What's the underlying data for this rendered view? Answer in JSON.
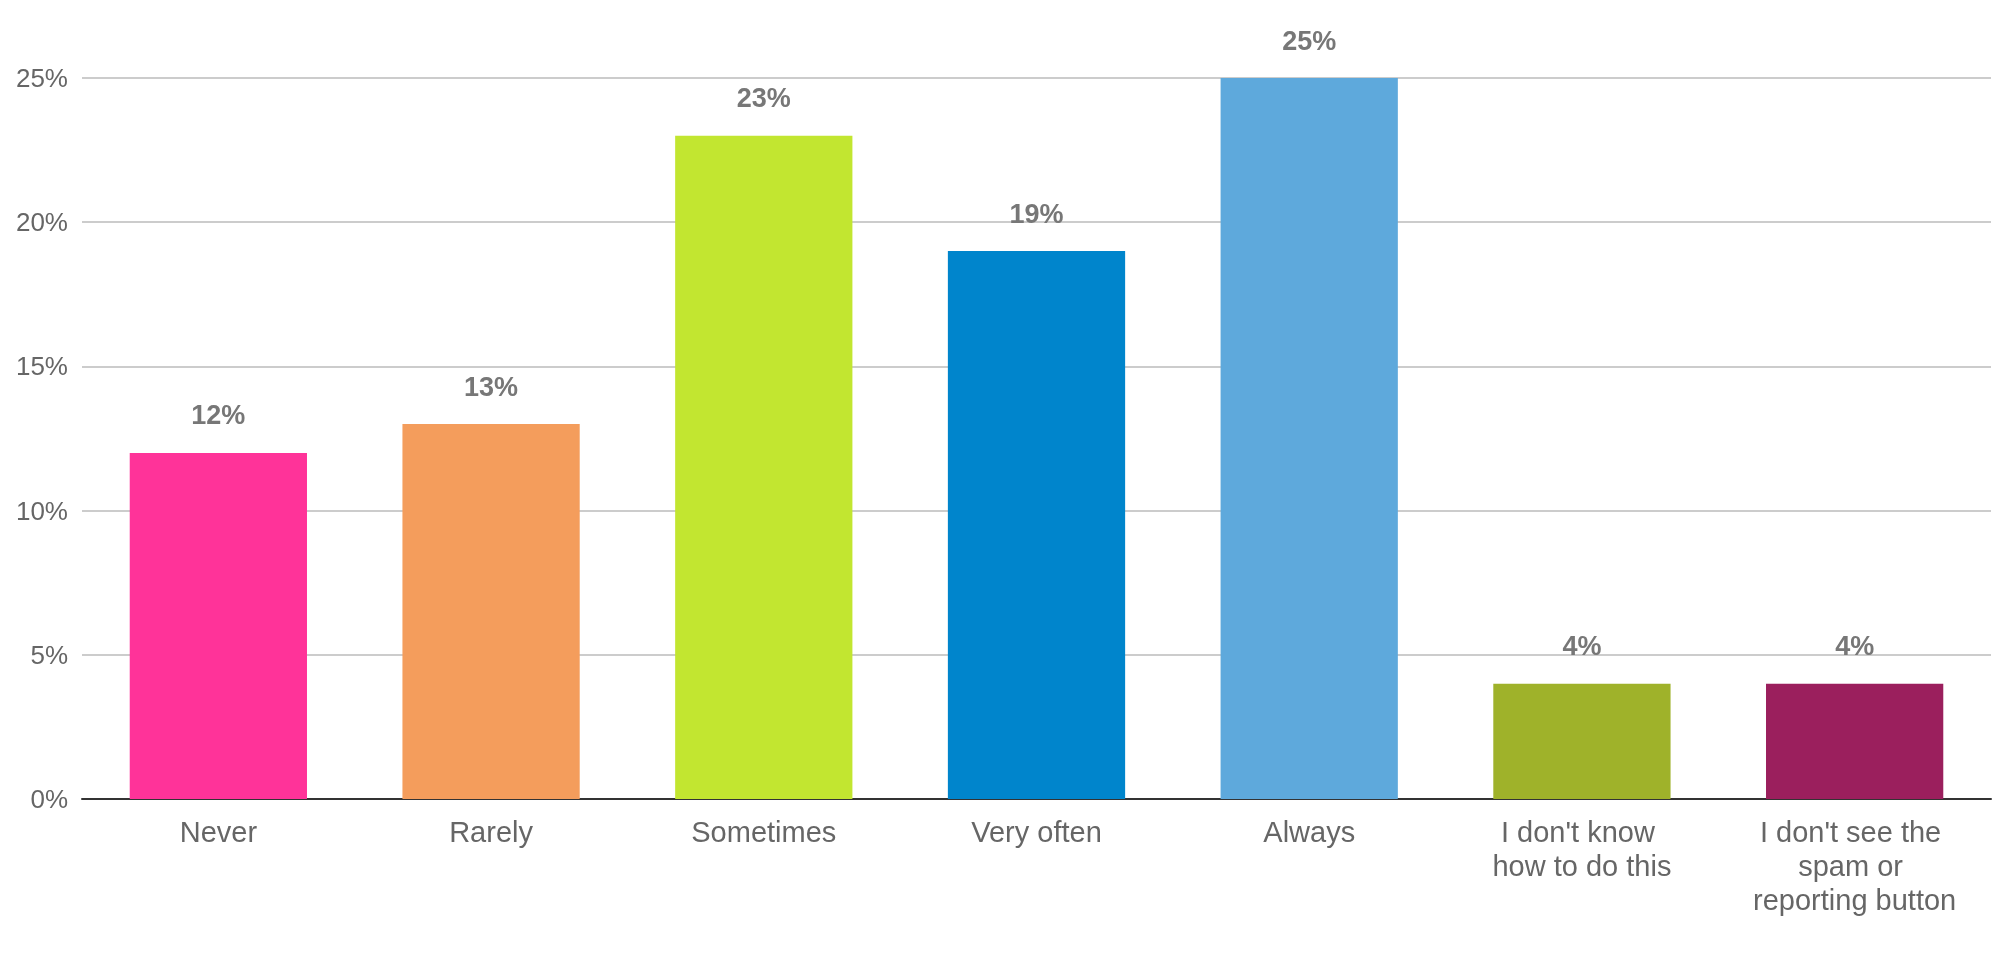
{
  "chart_data": {
    "type": "bar",
    "categories": [
      "Never",
      "Rarely",
      "Sometimes",
      "Very often",
      "Always",
      "I don't know how to do this",
      "I don't see the spam or reporting button"
    ],
    "values": [
      12,
      13,
      23,
      19,
      25,
      4,
      4
    ],
    "value_labels": [
      "12%",
      "13%",
      "23%",
      "19%",
      "25%",
      "4%",
      "4%"
    ],
    "colors": [
      "#ff3399",
      "#f49d5c",
      "#c2e630",
      "#0085cc",
      "#5ea9dc",
      "#9fb22a",
      "#9b1f5d"
    ],
    "ylim": [
      0,
      25
    ],
    "yticks": [
      {
        "value": 0,
        "label": "0%"
      },
      {
        "value": 5,
        "label": "5%"
      },
      {
        "value": 10,
        "label": "10%"
      },
      {
        "value": 15,
        "label": "15%"
      },
      {
        "value": 20,
        "label": "20%"
      },
      {
        "value": 25,
        "label": "25%"
      }
    ],
    "grid": "y"
  }
}
